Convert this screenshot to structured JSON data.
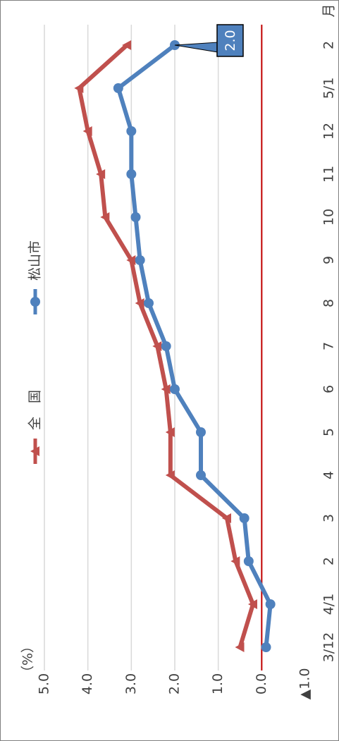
{
  "chart_data": {
    "type": "line",
    "y_label": "（%）",
    "x_unit": "月",
    "categories": [
      "3/12",
      "4/1",
      "2",
      "3",
      "4",
      "5",
      "6",
      "7",
      "8",
      "9",
      "10",
      "11",
      "12",
      "5/1",
      "2"
    ],
    "series": [
      {
        "name": "全　国",
        "color": "#c0504d",
        "marker": "triangle",
        "values": [
          0.5,
          0.2,
          0.6,
          0.8,
          2.1,
          2.1,
          2.2,
          2.4,
          2.8,
          3.0,
          3.6,
          3.7,
          4.0,
          4.2,
          3.1
        ]
      },
      {
        "name": "松山市",
        "color": "#4f81bd",
        "marker": "circle",
        "values": [
          -0.1,
          -0.2,
          0.3,
          0.4,
          1.4,
          1.4,
          2.0,
          2.2,
          2.6,
          2.8,
          2.9,
          3.0,
          3.0,
          3.3,
          2.0
        ],
        "value_labels": [
          null,
          null,
          null,
          null,
          null,
          null,
          null,
          null,
          null,
          null,
          null,
          null,
          null,
          null,
          "2.0"
        ]
      }
    ],
    "ylim": [
      -1,
      5
    ],
    "yticks": [
      {
        "value": -1,
        "label": "▲1.0"
      },
      {
        "value": 0,
        "label": "0.0"
      },
      {
        "value": 1,
        "label": "1.0"
      },
      {
        "value": 2,
        "label": "2.0"
      },
      {
        "value": 3,
        "label": "3.0"
      },
      {
        "value": 4,
        "label": "4.0"
      },
      {
        "value": 5,
        "label": "5.0"
      }
    ],
    "grid": true,
    "grid_color": "#d9d9d9",
    "zero_line_color": "#c00000"
  }
}
